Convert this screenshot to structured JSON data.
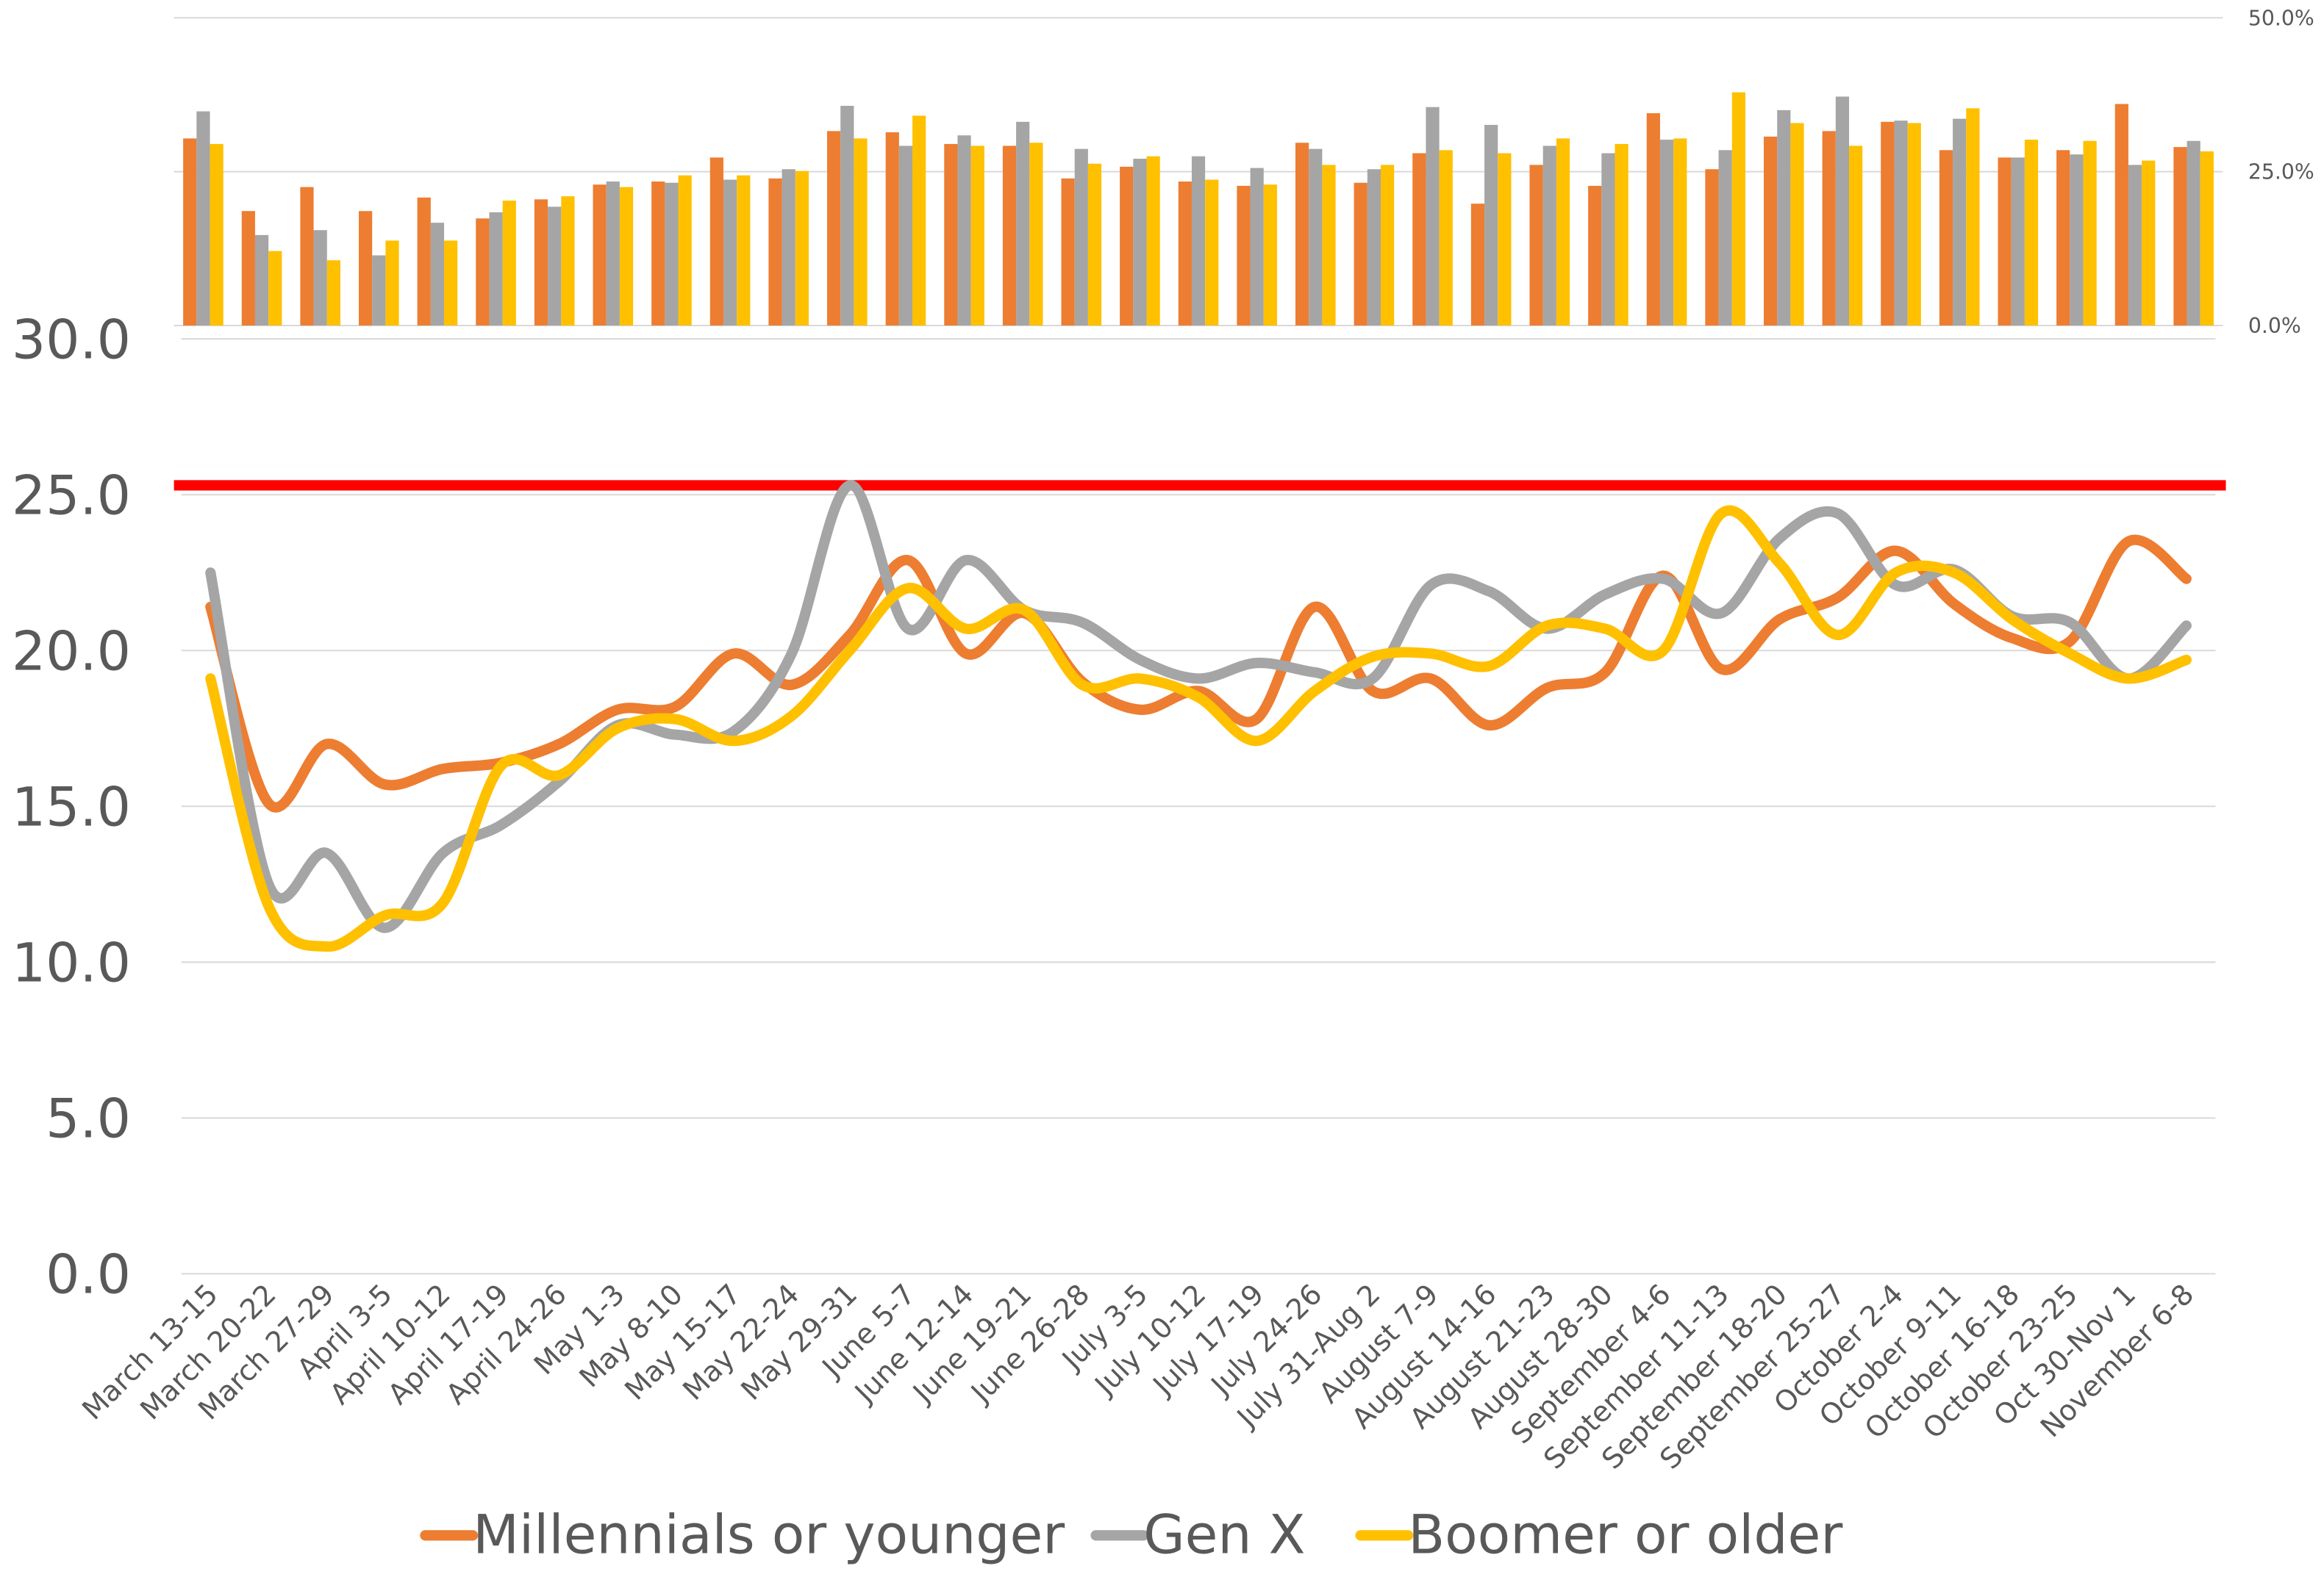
{
  "chart_data": [
    {
      "type": "bar",
      "y2lim": [
        0,
        50
      ],
      "y2ticks": [
        {
          "value": 0,
          "label": "0.0%"
        },
        {
          "value": 25,
          "label": "25.0%"
        },
        {
          "value": 50,
          "label": "50.0%"
        }
      ],
      "grid": true,
      "series": [
        {
          "color": "#ed7d31",
          "axis": "y2",
          "values": [
            30.4,
            18.6,
            22.5,
            18.6,
            20.8,
            17.4,
            20.5,
            22.9,
            23.4,
            27.3,
            23.9,
            31.6,
            31.4,
            29.5,
            29.2,
            23.9,
            25.8,
            23.4,
            22.7,
            29.7,
            23.2,
            28.0,
            19.8,
            26.1,
            22.7,
            34.5,
            25.4,
            30.7,
            31.6,
            33.1,
            28.5,
            27.3,
            28.5,
            36.0,
            29.0
          ]
        },
        {
          "color": "#a5a5a5",
          "axis": "y2",
          "values": [
            34.8,
            14.7,
            15.5,
            11.4,
            16.7,
            18.4,
            19.3,
            23.4,
            23.2,
            23.7,
            25.4,
            35.7,
            29.2,
            30.9,
            33.1,
            28.7,
            27.1,
            27.5,
            25.6,
            28.7,
            25.4,
            35.5,
            32.6,
            29.2,
            28.0,
            30.2,
            28.5,
            35.0,
            37.2,
            33.3,
            33.6,
            27.3,
            27.8,
            26.1,
            30.0
          ]
        },
        {
          "color": "#ffc000",
          "axis": "y2",
          "values": [
            29.5,
            12.1,
            10.6,
            13.8,
            13.8,
            20.3,
            21.0,
            22.5,
            24.4,
            24.4,
            25.1,
            30.4,
            34.1,
            29.2,
            29.7,
            26.3,
            27.5,
            23.7,
            22.9,
            26.1,
            26.1,
            28.5,
            28.0,
            30.4,
            29.5,
            30.4,
            37.9,
            32.9,
            29.2,
            32.9,
            35.3,
            30.2,
            30.0,
            26.8,
            28.3
          ]
        }
      ]
    },
    {
      "type": "line",
      "categories": [
        "March 13-15",
        "March 20-22",
        "March 27-29",
        "April 3-5",
        "April 10-12",
        "April 17-19",
        "April 24-26",
        "May 1-3",
        "May 8-10",
        "May 15-17",
        "May 22-24",
        "May 29-31",
        "June 5-7",
        "June 12-14",
        "June 19-21",
        "June 26-28",
        "July 3-5",
        "July 10-12",
        "July 17-19",
        "July 24-26",
        "July 31-Aug 2",
        "August 7-9",
        "August 14-16",
        "August 21-23",
        "August 28-30",
        "September 4-6",
        "September 11-13",
        "September 18-20",
        "September 25-27",
        "October 2-4",
        "October 9-11",
        "October 16-18",
        "October 23-25",
        "Oct 30-Nov 1",
        "November 6-8"
      ],
      "ylim": [
        0,
        30
      ],
      "yticks": [
        {
          "value": 0,
          "label": "0.0"
        },
        {
          "value": 5,
          "label": "5.0"
        },
        {
          "value": 10,
          "label": "10.0"
        },
        {
          "value": 15,
          "label": "15.0"
        },
        {
          "value": 20,
          "label": "20.0"
        },
        {
          "value": 25,
          "label": "25.0"
        },
        {
          "value": 30,
          "label": "30.0"
        }
      ],
      "grid": true,
      "legend": "bottom",
      "reference_line": {
        "value": 25.3,
        "color": "#ff0000"
      },
      "series": [
        {
          "name": "Millennials or younger",
          "color": "#ed7d31",
          "values": [
            21.4,
            15.1,
            17.0,
            15.7,
            16.2,
            16.4,
            17.0,
            18.1,
            18.2,
            19.9,
            18.9,
            20.5,
            22.9,
            19.9,
            21.2,
            19.0,
            18.1,
            18.7,
            17.8,
            21.4,
            18.7,
            19.1,
            17.6,
            18.8,
            19.3,
            22.4,
            19.4,
            21.0,
            21.7,
            23.2,
            21.5,
            20.4,
            20.3,
            23.5,
            22.3
          ]
        },
        {
          "name": "Gen X",
          "color": "#a5a5a5",
          "values": [
            22.5,
            12.5,
            13.5,
            11.1,
            13.5,
            14.4,
            15.8,
            17.6,
            17.3,
            17.4,
            19.9,
            25.3,
            20.7,
            22.9,
            21.3,
            20.9,
            19.7,
            19.1,
            19.6,
            19.3,
            19.1,
            22.1,
            21.9,
            20.7,
            21.8,
            22.3,
            21.2,
            23.6,
            24.4,
            22.1,
            22.6,
            21.1,
            20.9,
            19.1,
            20.8
          ]
        },
        {
          "name": "Boomer or older",
          "color": "#ffc000",
          "values": [
            19.1,
            11.8,
            10.5,
            11.5,
            11.9,
            16.3,
            16.0,
            17.5,
            17.8,
            17.1,
            17.9,
            20.0,
            22.0,
            20.7,
            21.3,
            18.9,
            19.1,
            18.5,
            17.1,
            18.7,
            19.8,
            19.9,
            19.5,
            20.8,
            20.7,
            20.0,
            24.4,
            22.8,
            20.5,
            22.5,
            22.5,
            21.0,
            19.9,
            19.1,
            19.7
          ]
        }
      ]
    }
  ]
}
